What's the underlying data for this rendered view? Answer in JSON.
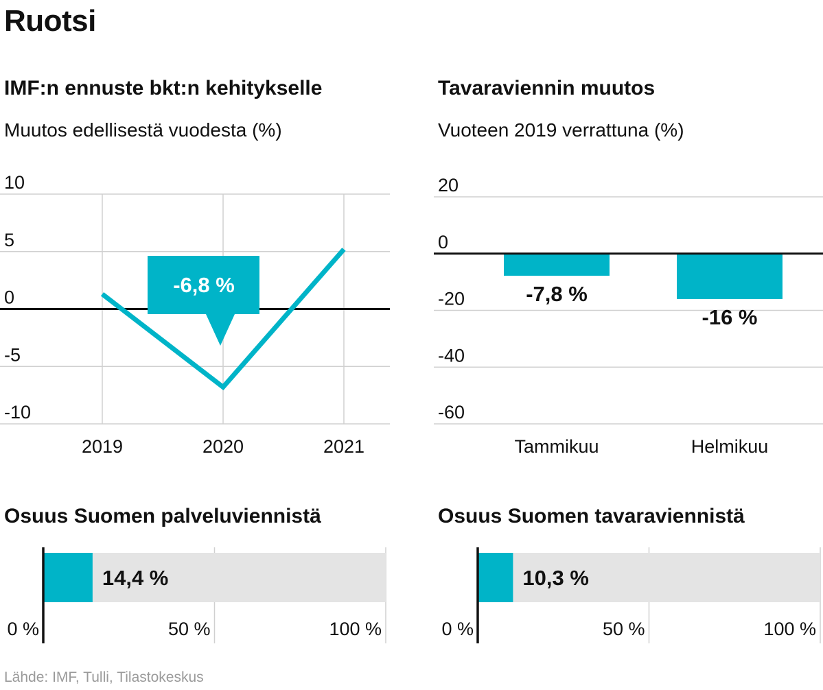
{
  "title": "Ruotsi",
  "source": "Lähde: IMF, Tulli, Tilastokeskus",
  "colors": {
    "accent": "#00b4c8",
    "track": "#e4e4e4",
    "grid": "#d0d0d0",
    "axis": "#111111"
  },
  "chart_data": [
    {
      "type": "line",
      "title": "IMF:n ennuste bkt:n kehitykselle",
      "subtitle": "Muutos edellisestä vuodesta (%)",
      "x": [
        "2019",
        "2020",
        "2021"
      ],
      "series": [
        {
          "values": [
            1.3,
            -6.8,
            5.2
          ]
        }
      ],
      "ylim": [
        -10,
        10
      ],
      "yticks": [
        "10",
        "5",
        "0",
        "-5",
        "-10"
      ],
      "callout": "-6,8 %",
      "grid": true
    },
    {
      "type": "bar",
      "title": "Tavaraviennin muutos",
      "subtitle": "Vuoteen 2019 verrattuna (%)",
      "categories": [
        "Tammikuu",
        "Helmikuu"
      ],
      "values": [
        -7.8,
        -16
      ],
      "labels": [
        "-7,8 %",
        "-16 %"
      ],
      "ylim": [
        -60,
        20
      ],
      "yticks": [
        "20",
        "0",
        "-20",
        "-40",
        "-60"
      ],
      "grid": true
    },
    {
      "type": "bar",
      "title": "Osuus Suomen palveluviennistä",
      "value": 14.4,
      "label": "14,4 %",
      "xlim": [
        0,
        100
      ],
      "xticks": [
        "0 %",
        "50 %",
        "100 %"
      ]
    },
    {
      "type": "bar",
      "title": "Osuus Suomen tavaraviennistä",
      "value": 10.3,
      "label": "10,3 %",
      "xlim": [
        0,
        100
      ],
      "xticks": [
        "0 %",
        "50 %",
        "100 %"
      ]
    }
  ]
}
